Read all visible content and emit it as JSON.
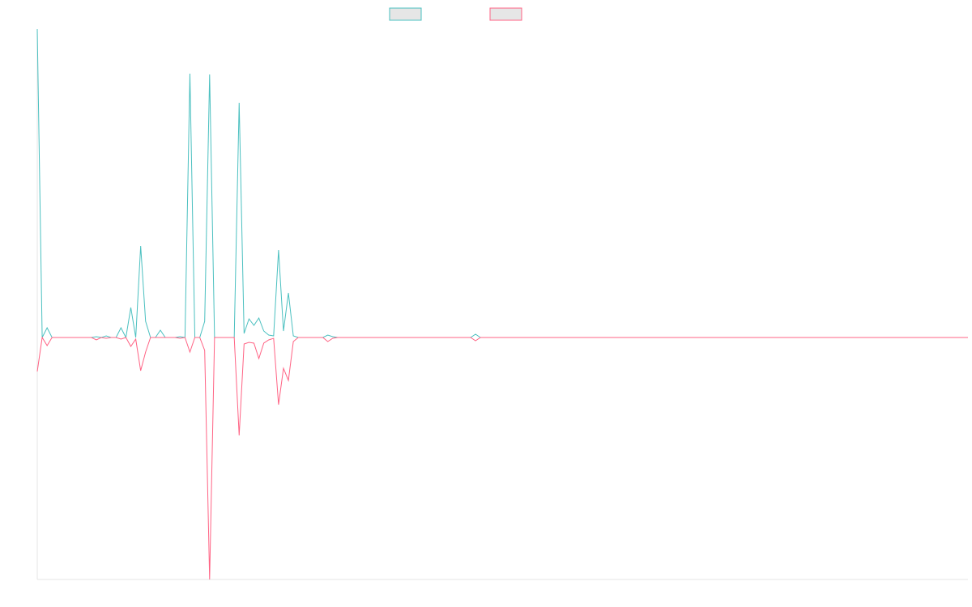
{
  "chart_data": {
    "type": "line",
    "categories": [
      null,
      null,
      null,
      null,
      null,
      null,
      null,
      null,
      null,
      null,
      null,
      null,
      null,
      null,
      null,
      null,
      null,
      null,
      null,
      null,
      null,
      null,
      null,
      null,
      null,
      null,
      null,
      null,
      null,
      null,
      null,
      null,
      null,
      null,
      null,
      null,
      null,
      null,
      null,
      null,
      null,
      null,
      null,
      null,
      null,
      null,
      null,
      null,
      null,
      null,
      null,
      null,
      null,
      null,
      null,
      null,
      null,
      null,
      null,
      null,
      null,
      null,
      null,
      null,
      null,
      null,
      null,
      null,
      null,
      null,
      null,
      null,
      null,
      null,
      null,
      null,
      null,
      null,
      null,
      null,
      null,
      null,
      null,
      null,
      null,
      null,
      null,
      null,
      null,
      null,
      null,
      null,
      null,
      null,
      null,
      null,
      null,
      null,
      null,
      null,
      null,
      null,
      null,
      null,
      null,
      null,
      null,
      null,
      null,
      null,
      null,
      null,
      null,
      null,
      null,
      null,
      null,
      null,
      null,
      null,
      null,
      null,
      null,
      null,
      null,
      null,
      null,
      null,
      null,
      null,
      null,
      null,
      null,
      null,
      null,
      null,
      null,
      null,
      null,
      null,
      null,
      null,
      null,
      null,
      null,
      null,
      null,
      null,
      null,
      null,
      null,
      null,
      null,
      null,
      null,
      null,
      null,
      null,
      null,
      null,
      null,
      null,
      null,
      null,
      null,
      null,
      null,
      null,
      null,
      null,
      null,
      null,
      null,
      null,
      null,
      null,
      null,
      null,
      null,
      null,
      null,
      null,
      null,
      null,
      null,
      null,
      null,
      null,
      null,
      null
    ],
    "ylim": [
      -299,
      381
    ],
    "series": [
      {
        "color": "#4bc0c0",
        "values": [
          381,
          0,
          12,
          0,
          0,
          0,
          0,
          0,
          0,
          0,
          0,
          0,
          1,
          0,
          2,
          0,
          0,
          12,
          0,
          37,
          0,
          113,
          20,
          0,
          0,
          9,
          0,
          0,
          0,
          1,
          0,
          326,
          0,
          0,
          20,
          325,
          0,
          0,
          0,
          0,
          0,
          290,
          5,
          23,
          15,
          24,
          8,
          3,
          2,
          108,
          8,
          55,
          2,
          0,
          0,
          0,
          0,
          0,
          0,
          3,
          1,
          0,
          0,
          0,
          0,
          0,
          0,
          0,
          0,
          0,
          0,
          0,
          0,
          0,
          0,
          0,
          0,
          0,
          0,
          0,
          0,
          0,
          0,
          0,
          0,
          0,
          0,
          0,
          0,
          4,
          0,
          0,
          0,
          0,
          0,
          0,
          0,
          0,
          0,
          0,
          0,
          0,
          0,
          0,
          0,
          0,
          0,
          0,
          0,
          0,
          0,
          0,
          0,
          0,
          0,
          0,
          0,
          0,
          0,
          0,
          0,
          0,
          0,
          0,
          0,
          0,
          0,
          0,
          0,
          0,
          0,
          0,
          0,
          0,
          0,
          0,
          0,
          0,
          0,
          0,
          0,
          0,
          0,
          0,
          0,
          0,
          0,
          0,
          0,
          0,
          0,
          0,
          0,
          0,
          0,
          0,
          0,
          0,
          0,
          0,
          0,
          0,
          0,
          0,
          0,
          0,
          0,
          0,
          0,
          0,
          0,
          0,
          0,
          0,
          0,
          0,
          0,
          0,
          0,
          0,
          0,
          0,
          0,
          0,
          0,
          0,
          0,
          0,
          0,
          0
        ]
      },
      {
        "color": "#ff6384",
        "values": [
          -42,
          0,
          -10,
          0,
          0,
          0,
          0,
          0,
          0,
          0,
          0,
          0,
          -3,
          0,
          -1,
          0,
          0,
          -2,
          0,
          -11,
          -2,
          -41,
          -18,
          0,
          0,
          0,
          0,
          0,
          0,
          -1,
          0,
          -18,
          0,
          0,
          -16,
          -299,
          0,
          0,
          0,
          0,
          0,
          -121,
          -8,
          -6,
          -7,
          -26,
          -7,
          -3,
          -1,
          -83,
          -38,
          -53,
          -5,
          0,
          0,
          0,
          0,
          0,
          0,
          -5,
          -1,
          0,
          0,
          0,
          0,
          0,
          0,
          0,
          0,
          0,
          0,
          0,
          0,
          0,
          0,
          0,
          0,
          0,
          0,
          0,
          0,
          0,
          0,
          0,
          0,
          0,
          0,
          0,
          0,
          -4,
          0,
          0,
          0,
          0,
          0,
          0,
          0,
          0,
          0,
          0,
          0,
          0,
          0,
          0,
          0,
          0,
          0,
          0,
          0,
          0,
          0,
          0,
          0,
          0,
          0,
          0,
          0,
          0,
          0,
          0,
          0,
          0,
          0,
          0,
          0,
          0,
          0,
          0,
          0,
          0,
          0,
          0,
          0,
          0,
          0,
          0,
          0,
          0,
          0,
          0,
          0,
          0,
          0,
          0,
          0,
          0,
          0,
          0,
          0,
          0,
          0,
          0,
          0,
          0,
          0,
          0,
          0,
          0,
          0,
          0,
          0,
          0,
          0,
          0,
          0,
          0,
          0,
          0,
          0,
          0,
          0,
          0,
          0,
          0,
          0,
          0,
          0,
          0,
          0,
          0,
          0,
          0,
          0,
          0,
          0,
          0,
          0,
          0,
          0,
          0
        ]
      }
    ]
  }
}
